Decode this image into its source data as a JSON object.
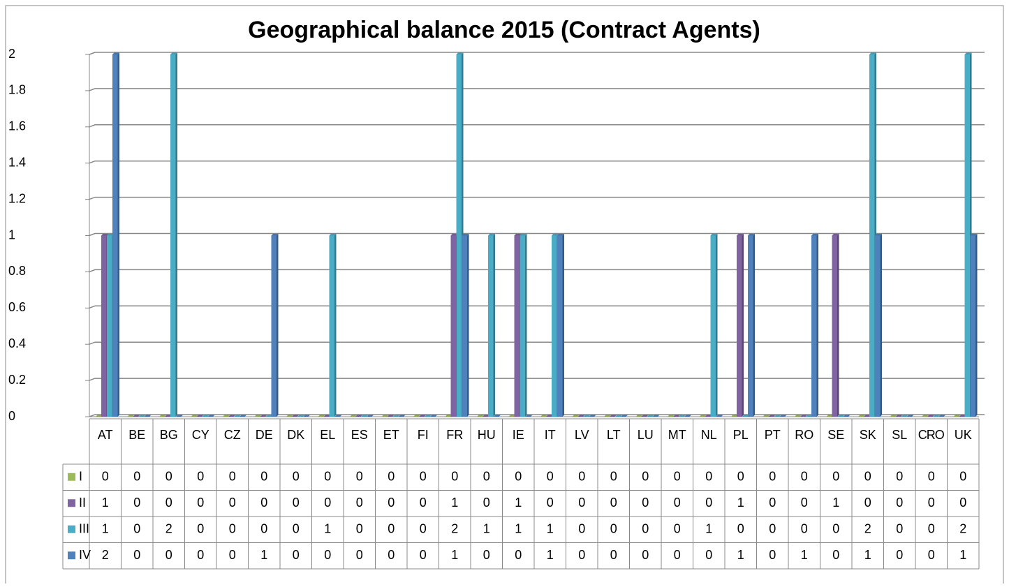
{
  "chart_data": {
    "type": "bar",
    "title": "Geographical balance 2015 (Contract Agents)",
    "categories": [
      "AT",
      "BE",
      "BG",
      "CY",
      "CZ",
      "DE",
      "DK",
      "EL",
      "ES",
      "ET",
      "FI",
      "FR",
      "HU",
      "IE",
      "IT",
      "LV",
      "LT",
      "LU",
      "MT",
      "NL",
      "PL",
      "PT",
      "RO",
      "SE",
      "SK",
      "SL",
      "CRO",
      "UK"
    ],
    "series": [
      {
        "name": "I",
        "color": "#9bbb59",
        "values": [
          0,
          0,
          0,
          0,
          0,
          0,
          0,
          0,
          0,
          0,
          0,
          0,
          0,
          0,
          0,
          0,
          0,
          0,
          0,
          0,
          0,
          0,
          0,
          0,
          0,
          0,
          0,
          0
        ]
      },
      {
        "name": "II",
        "color": "#8064a2",
        "values": [
          1,
          0,
          0,
          0,
          0,
          0,
          0,
          0,
          0,
          0,
          0,
          1,
          0,
          1,
          0,
          0,
          0,
          0,
          0,
          0,
          1,
          0,
          0,
          1,
          0,
          0,
          0,
          0
        ]
      },
      {
        "name": "III",
        "color": "#4bacc6",
        "values": [
          1,
          0,
          2,
          0,
          0,
          0,
          0,
          1,
          0,
          0,
          0,
          2,
          1,
          1,
          1,
          0,
          0,
          0,
          0,
          1,
          0,
          0,
          0,
          0,
          2,
          0,
          0,
          2
        ]
      },
      {
        "name": "IV",
        "color": "#4f81bd",
        "values": [
          2,
          0,
          0,
          0,
          0,
          1,
          0,
          0,
          0,
          0,
          0,
          1,
          0,
          0,
          1,
          0,
          0,
          0,
          0,
          0,
          1,
          0,
          1,
          0,
          1,
          0,
          0,
          1
        ]
      }
    ],
    "ylim": [
      0,
      2
    ],
    "yticks": [
      0,
      0.2,
      0.4,
      0.6,
      0.8,
      1,
      1.2,
      1.4,
      1.6,
      1.8,
      2
    ],
    "grid": true
  }
}
